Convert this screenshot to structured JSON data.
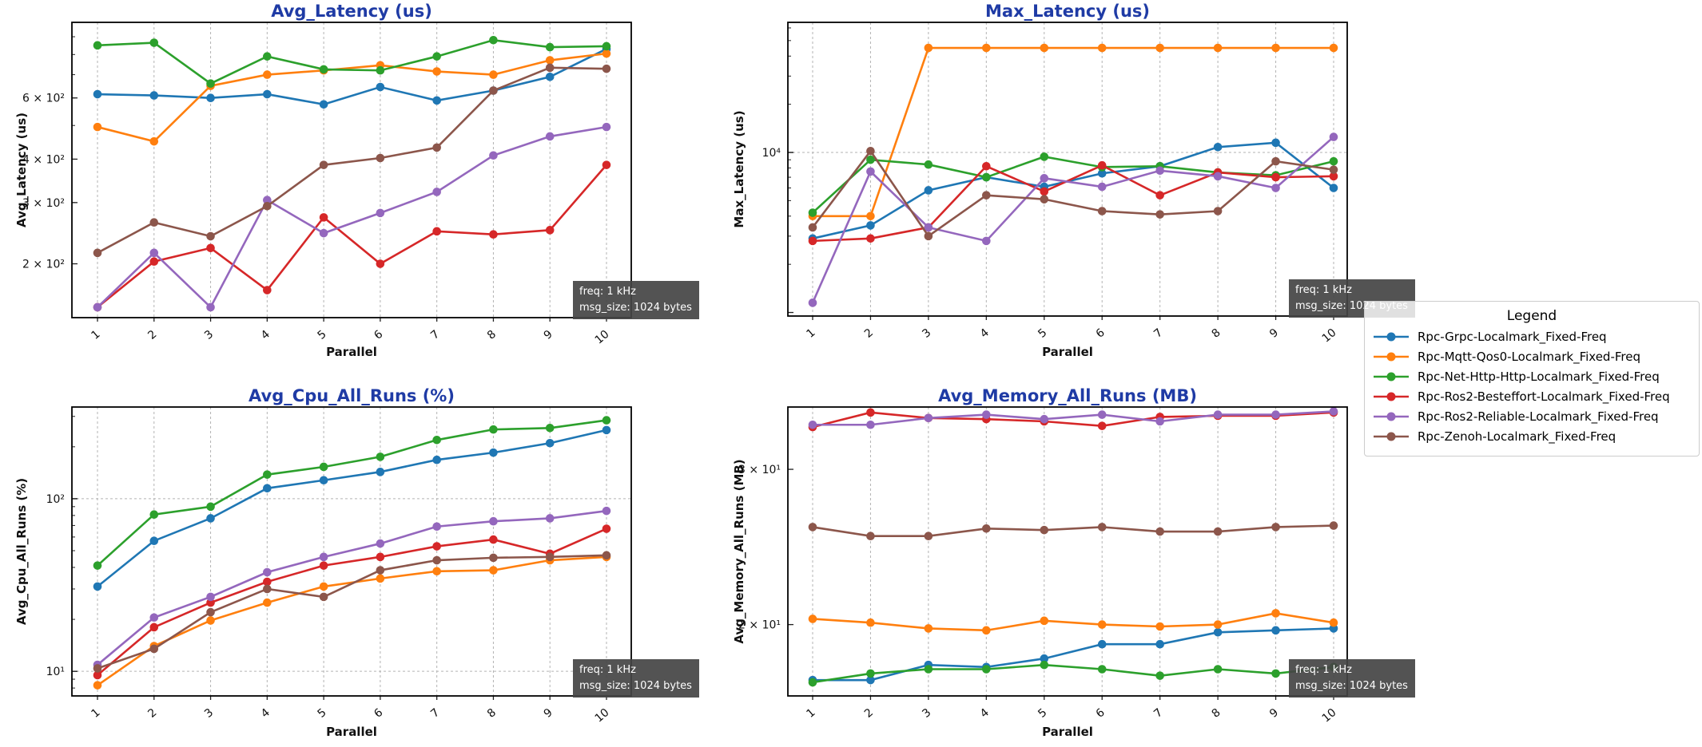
{
  "style": {
    "title_color": "#1f3ba5",
    "grid_color": "#b3b3b3",
    "annotation_bg": "#444444",
    "annotation_fg": "#ffffff",
    "series_colors": {
      "grpc": "#1f77b4",
      "mqtt": "#ff7f0e",
      "nethttp": "#2ca02c",
      "ros2_besteffort": "#d62728",
      "ros2_reliable": "#9467bd",
      "zenoh": "#8c564b"
    }
  },
  "annotation": {
    "line1": "freq: 1 kHz",
    "line2": "msg_size: 1024 bytes"
  },
  "legend": {
    "title": "Legend",
    "entries": [
      {
        "label": "Rpc-Grpc-Localmark_Fixed-Freq",
        "color": "#1f77b4"
      },
      {
        "label": "Rpc-Mqtt-Qos0-Localmark_Fixed-Freq",
        "color": "#ff7f0e"
      },
      {
        "label": "Rpc-Net-Http-Http-Localmark_Fixed-Freq",
        "color": "#2ca02c"
      },
      {
        "label": "Rpc-Ros2-Besteffort-Localmark_Fixed-Freq",
        "color": "#d62728"
      },
      {
        "label": "Rpc-Ros2-Reliable-Localmark_Fixed-Freq",
        "color": "#9467bd"
      },
      {
        "label": "Rpc-Zenoh-Localmark_Fixed-Freq",
        "color": "#8c564b"
      }
    ]
  },
  "chart_data": [
    {
      "id": "avg_latency",
      "type": "line",
      "title": "Avg_Latency (us)",
      "ylabel": "Avg_Latency (us)",
      "xlabel": "Parallel",
      "yscale": "log",
      "ylim": [
        140,
        990
      ],
      "yticks": [
        {
          "value": 200,
          "label": "2 × 10²"
        },
        {
          "value": 300,
          "label": "3 × 10²"
        },
        {
          "value": 400,
          "label": "4 × 10²"
        },
        {
          "value": 600,
          "label": "6 × 10²"
        }
      ],
      "ygrid": [],
      "x": [
        1,
        2,
        3,
        4,
        5,
        6,
        7,
        8,
        9,
        10
      ],
      "series": [
        {
          "name": "Rpc-Grpc-Localmark_Fixed-Freq",
          "color": "#1f77b4",
          "values": [
            615,
            610,
            600,
            615,
            575,
            645,
            590,
            630,
            690,
            830
          ]
        },
        {
          "name": "Rpc-Mqtt-Qos0-Localmark_Fixed-Freq",
          "color": "#ff7f0e",
          "values": [
            495,
            450,
            650,
            700,
            720,
            745,
            715,
            700,
            770,
            805
          ]
        },
        {
          "name": "Rpc-Net-Http-Http-Localmark_Fixed-Freq",
          "color": "#2ca02c",
          "values": [
            850,
            865,
            660,
            790,
            725,
            720,
            790,
            880,
            840,
            845
          ]
        },
        {
          "name": "Rpc-Ros2-Besteffort-Localmark_Fixed-Freq",
          "color": "#d62728",
          "values": [
            150,
            203,
            222,
            168,
            272,
            200,
            248,
            243,
            250,
            385
          ]
        },
        {
          "name": "Rpc-Ros2-Reliable-Localmark_Fixed-Freq",
          "color": "#9467bd",
          "values": [
            150,
            215,
            150,
            305,
            245,
            280,
            322,
            410,
            465,
            495
          ]
        },
        {
          "name": "Rpc-Zenoh-Localmark_Fixed-Freq",
          "color": "#8c564b",
          "values": [
            215,
            263,
            240,
            293,
            385,
            403,
            432,
            630,
            733,
            728
          ]
        }
      ]
    },
    {
      "id": "max_latency",
      "type": "line",
      "title": "Max_Latency (us)",
      "ylabel": "Max_Latency (us)",
      "xlabel": "Parallel",
      "yscale": "log",
      "ylim": [
        950,
        65000
      ],
      "yticks": [
        {
          "value": 10000,
          "label": "10⁴"
        }
      ],
      "ygrid": [
        10000
      ],
      "x": [
        1,
        2,
        3,
        4,
        5,
        6,
        7,
        8,
        9,
        10
      ],
      "series": [
        {
          "name": "Rpc-Grpc-Localmark_Fixed-Freq",
          "color": "#1f77b4",
          "values": [
            2900,
            3500,
            5800,
            7000,
            6100,
            7400,
            8200,
            10800,
            11500,
            6000
          ]
        },
        {
          "name": "Rpc-Mqtt-Qos0-Localmark_Fixed-Freq",
          "color": "#ff7f0e",
          "values": [
            4000,
            4000,
            45000,
            45000,
            45000,
            45000,
            45000,
            45000,
            45000,
            45000
          ]
        },
        {
          "name": "Rpc-Net-Http-Http-Localmark_Fixed-Freq",
          "color": "#2ca02c",
          "values": [
            4200,
            9000,
            8400,
            7000,
            9400,
            8100,
            8200,
            7500,
            7200,
            8800
          ]
        },
        {
          "name": "Rpc-Ros2-Besteffort-Localmark_Fixed-Freq",
          "color": "#d62728",
          "values": [
            2800,
            2900,
            3400,
            8200,
            5700,
            8300,
            5400,
            7500,
            7000,
            7100
          ]
        },
        {
          "name": "Rpc-Ros2-Reliable-Localmark_Fixed-Freq",
          "color": "#9467bd",
          "values": [
            1150,
            7600,
            3400,
            2800,
            6900,
            6100,
            7700,
            7100,
            6000,
            12500
          ]
        },
        {
          "name": "Rpc-Zenoh-Localmark_Fixed-Freq",
          "color": "#8c564b",
          "values": [
            3400,
            10200,
            3000,
            5400,
            5100,
            4300,
            4100,
            4300,
            8800,
            7800
          ]
        }
      ]
    },
    {
      "id": "avg_cpu_all_runs",
      "type": "line",
      "title": "Avg_Cpu_All_Runs (%)",
      "ylabel": "Avg_Cpu_All_Runs (%)",
      "xlabel": "Parallel",
      "yscale": "log",
      "ylim": [
        7.2,
        340
      ],
      "yticks": [
        {
          "value": 10,
          "label": "10¹"
        },
        {
          "value": 100,
          "label": "10²"
        }
      ],
      "ygrid": [
        10,
        100
      ],
      "x": [
        1,
        2,
        3,
        4,
        5,
        6,
        7,
        8,
        9,
        10
      ],
      "series": [
        {
          "name": "Rpc-Grpc-Localmark_Fixed-Freq",
          "color": "#1f77b4",
          "values": [
            31,
            57,
            77,
            115,
            128,
            143,
            168,
            185,
            210,
            250
          ]
        },
        {
          "name": "Rpc-Mqtt-Qos0-Localmark_Fixed-Freq",
          "color": "#ff7f0e",
          "values": [
            8.3,
            14,
            19.7,
            25,
            31,
            34.5,
            38,
            38.5,
            44,
            46
          ]
        },
        {
          "name": "Rpc-Net-Http-Http-Localmark_Fixed-Freq",
          "color": "#2ca02c",
          "values": [
            41,
            81,
            90,
            138,
            153,
            175,
            219,
            252,
            257,
            285
          ]
        },
        {
          "name": "Rpc-Ros2-Besteffort-Localmark_Fixed-Freq",
          "color": "#d62728",
          "values": [
            9.5,
            18,
            25,
            33,
            41,
            46,
            53,
            58,
            48,
            67
          ]
        },
        {
          "name": "Rpc-Ros2-Reliable-Localmark_Fixed-Freq",
          "color": "#9467bd",
          "values": [
            10.9,
            20.5,
            27,
            37.5,
            46,
            55,
            69,
            74,
            77,
            85
          ]
        },
        {
          "name": "Rpc-Zenoh-Localmark_Fixed-Freq",
          "color": "#8c564b",
          "values": [
            10.4,
            13.5,
            22,
            30,
            27,
            38.5,
            44,
            45.5,
            46,
            47
          ]
        }
      ]
    },
    {
      "id": "avg_memory_all_runs",
      "type": "line",
      "title": "Avg_Memory_All_Runs (MB)",
      "ylabel": "Avg_Memory_All_Runs (MB)",
      "xlabel": "Parallel",
      "yscale": "log",
      "ylim": [
        16.6,
        35.3
      ],
      "yticks": [
        {
          "value": 20,
          "label": "2 × 10¹"
        },
        {
          "value": 30,
          "label": "3 × 10¹"
        }
      ],
      "ygrid": [],
      "x": [
        1,
        2,
        3,
        4,
        5,
        6,
        7,
        8,
        9,
        10
      ],
      "series": [
        {
          "name": "Rpc-Grpc-Localmark_Fixed-Freq",
          "color": "#1f77b4",
          "values": [
            17.3,
            17.3,
            18.0,
            17.9,
            18.3,
            19.0,
            19.0,
            19.6,
            19.7,
            19.8
          ]
        },
        {
          "name": "Rpc-Mqtt-Qos0-Localmark_Fixed-Freq",
          "color": "#ff7f0e",
          "values": [
            20.3,
            20.1,
            19.8,
            19.7,
            20.2,
            20.0,
            19.9,
            20.0,
            20.6,
            20.1
          ]
        },
        {
          "name": "Rpc-Net-Http-Http-Localmark_Fixed-Freq",
          "color": "#2ca02c",
          "values": [
            17.2,
            17.6,
            17.8,
            17.8,
            18.0,
            17.8,
            17.5,
            17.8,
            17.6,
            17.9
          ]
        },
        {
          "name": "Rpc-Ros2-Besteffort-Localmark_Fixed-Freq",
          "color": "#d62728",
          "values": [
            33.5,
            34.8,
            34.3,
            34.2,
            34.0,
            33.6,
            34.4,
            34.5,
            34.5,
            34.8
          ]
        },
        {
          "name": "Rpc-Ros2-Reliable-Localmark_Fixed-Freq",
          "color": "#9467bd",
          "values": [
            33.7,
            33.7,
            34.3,
            34.6,
            34.2,
            34.6,
            34.0,
            34.6,
            34.6,
            34.9
          ]
        },
        {
          "name": "Rpc-Zenoh-Localmark_Fixed-Freq",
          "color": "#8c564b",
          "values": [
            25.8,
            25.2,
            25.2,
            25.7,
            25.6,
            25.8,
            25.5,
            25.5,
            25.8,
            25.9
          ]
        }
      ]
    }
  ]
}
